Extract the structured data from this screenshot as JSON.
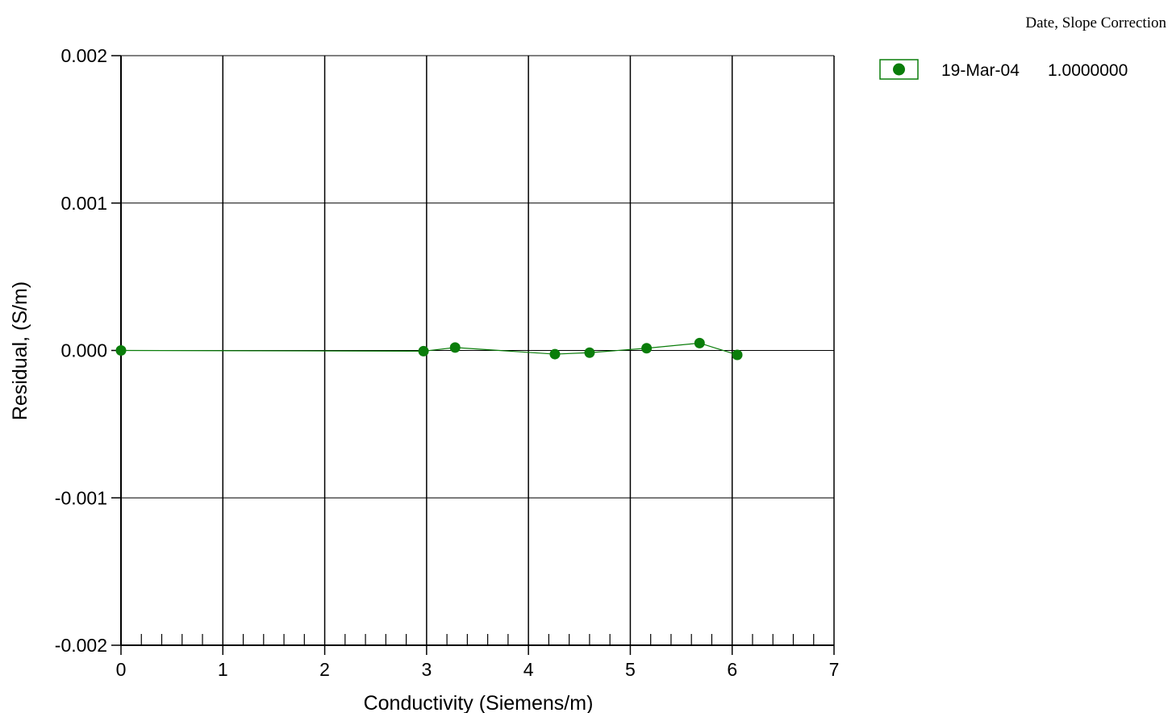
{
  "chart_data": {
    "type": "scatter",
    "xlabel": "Conductivity (Siemens/m)",
    "ylabel": "Residual, (S/m)",
    "xlim": [
      0,
      7
    ],
    "ylim": [
      -0.002,
      0.002
    ],
    "x_ticks": [
      0,
      1,
      2,
      3,
      4,
      5,
      6,
      7
    ],
    "x_tick_labels": [
      "0",
      "1",
      "2",
      "3",
      "4",
      "5",
      "6",
      "7"
    ],
    "y_ticks": [
      0.002,
      0.001,
      0.0,
      -0.001,
      -0.002
    ],
    "y_tick_labels": [
      "0.002",
      "0.001",
      "0.000",
      "-0.001",
      "-0.002"
    ],
    "minor_x_tick_step": 0.2,
    "grid": true,
    "legend_position": "top-right",
    "legend_header": "Date, Slope Correction",
    "series": [
      {
        "name": "19-Mar-04",
        "slope_correction": "1.0000000",
        "color": "#0a7d0a",
        "marker": "circle",
        "connected": true,
        "x": [
          0.0,
          2.97,
          3.28,
          4.26,
          4.6,
          5.16,
          5.68,
          6.05
        ],
        "y": [
          0.0,
          -5e-06,
          2e-05,
          -2.5e-05,
          -1.5e-05,
          1.5e-05,
          5e-05,
          -3e-05
        ]
      }
    ]
  }
}
